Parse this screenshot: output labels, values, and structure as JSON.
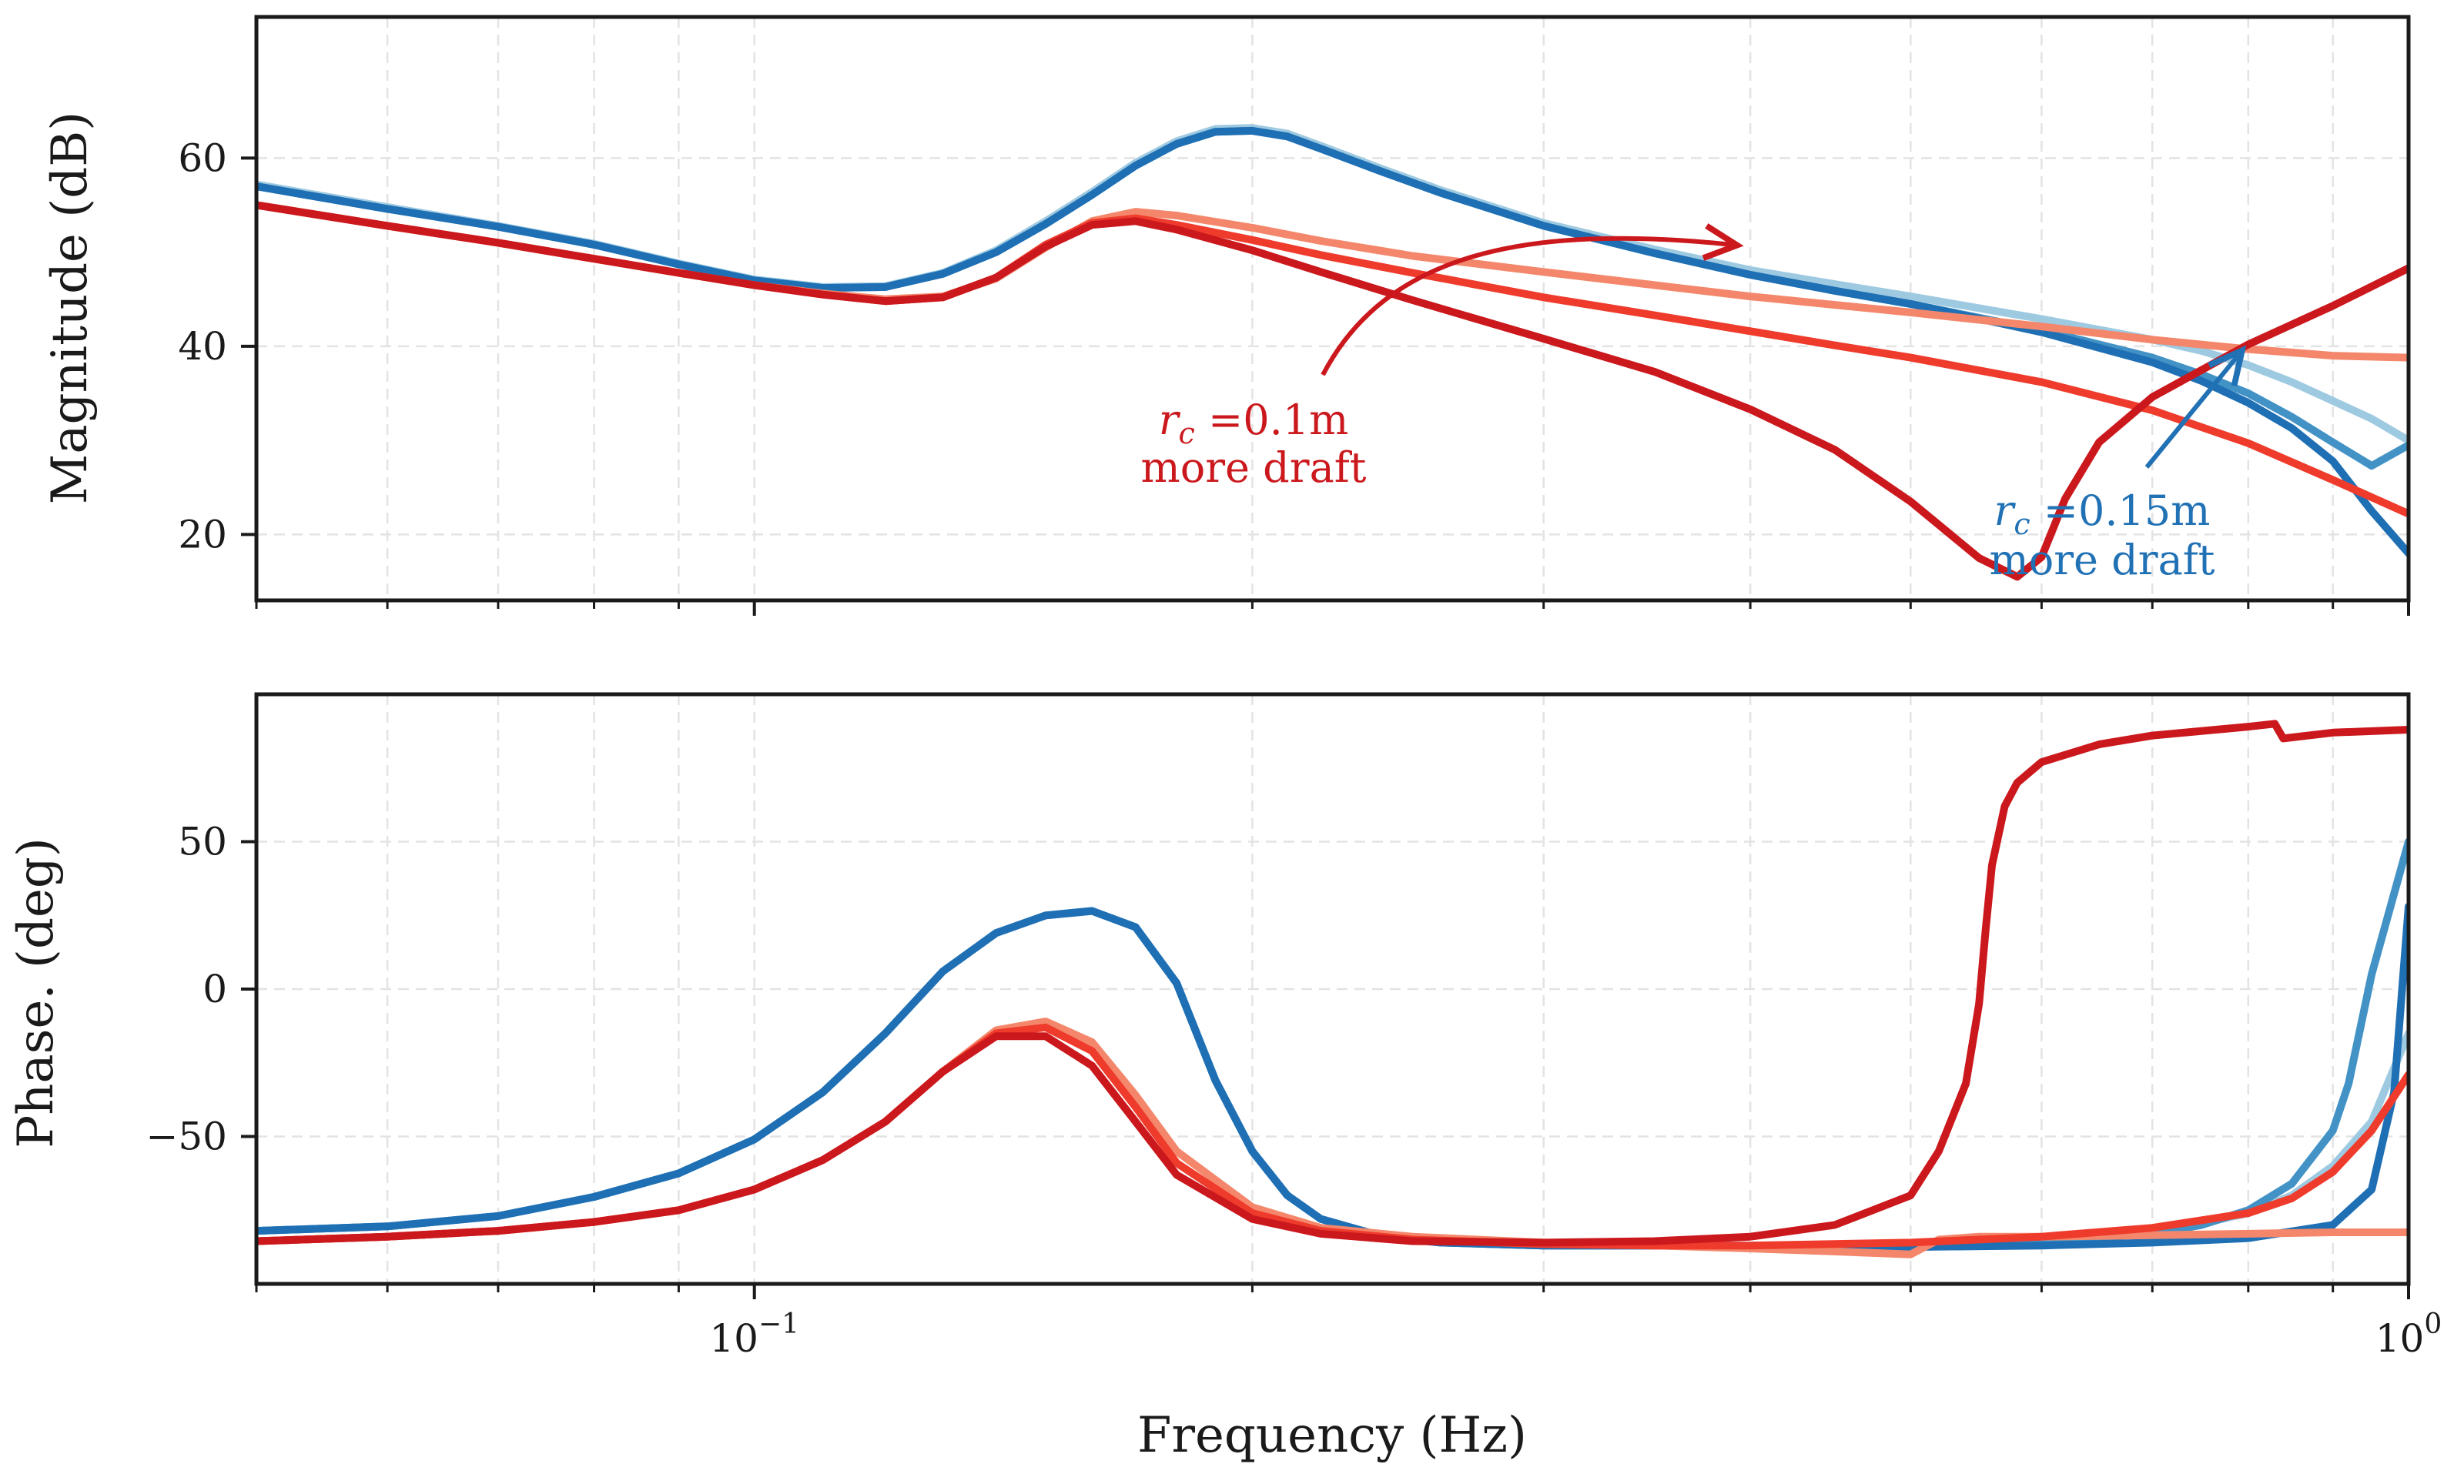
{
  "chart_data": [
    {
      "type": "line",
      "panel": "magnitude",
      "title": "",
      "xlabel": "",
      "ylabel": "Magnitude (dB)",
      "xscale": "log",
      "xlim": [
        0.05,
        1.0
      ],
      "ylim": [
        13,
        75
      ],
      "yticks": [
        20,
        40,
        60
      ],
      "ytick_labels": [
        "20",
        "40",
        "60"
      ],
      "grid": true,
      "series": [
        {
          "name": "blue-light",
          "color": "#9ecae1",
          "x": [
            0.05,
            0.06,
            0.07,
            0.08,
            0.09,
            0.1,
            0.11,
            0.12,
            0.13,
            0.14,
            0.15,
            0.16,
            0.17,
            0.18,
            0.19,
            0.2,
            0.21,
            0.22,
            0.24,
            0.26,
            0.3,
            0.35,
            0.4,
            0.45,
            0.5,
            0.6,
            0.7,
            0.75,
            0.8,
            0.85,
            0.9,
            0.95,
            1.0
          ],
          "y": [
            57.2,
            54.8,
            52.8,
            50.9,
            48.8,
            47.1,
            46.3,
            46.4,
            47.8,
            50.2,
            53.3,
            56.4,
            59.5,
            61.8,
            63.1,
            63.2,
            62.6,
            61.3,
            58.8,
            56.6,
            53.1,
            50.3,
            48.1,
            46.6,
            45.3,
            42.9,
            40.7,
            39.5,
            38.0,
            36.2,
            34.2,
            32.3,
            30.0
          ]
        },
        {
          "name": "blue-mid",
          "color": "#4292c6",
          "x": [
            0.05,
            0.06,
            0.07,
            0.08,
            0.09,
            0.1,
            0.11,
            0.12,
            0.13,
            0.14,
            0.15,
            0.16,
            0.17,
            0.18,
            0.19,
            0.2,
            0.21,
            0.22,
            0.24,
            0.26,
            0.3,
            0.35,
            0.4,
            0.45,
            0.5,
            0.6,
            0.7,
            0.75,
            0.8,
            0.85,
            0.9,
            0.95,
            1.0
          ],
          "y": [
            57.0,
            54.6,
            52.7,
            50.8,
            48.7,
            47.0,
            46.2,
            46.3,
            47.7,
            50.0,
            53.0,
            56.1,
            59.2,
            61.5,
            62.8,
            62.9,
            62.3,
            61.0,
            58.5,
            56.3,
            52.8,
            49.9,
            47.6,
            45.9,
            44.5,
            41.7,
            38.8,
            37.0,
            35.0,
            32.5,
            29.8,
            27.3,
            29.5
          ]
        },
        {
          "name": "blue-dark",
          "color": "#1f6fb4",
          "x": [
            0.05,
            0.06,
            0.07,
            0.08,
            0.09,
            0.1,
            0.11,
            0.12,
            0.13,
            0.14,
            0.15,
            0.16,
            0.17,
            0.18,
            0.19,
            0.2,
            0.21,
            0.22,
            0.24,
            0.26,
            0.3,
            0.35,
            0.4,
            0.45,
            0.5,
            0.6,
            0.7,
            0.75,
            0.8,
            0.85,
            0.9,
            0.95,
            1.0
          ],
          "y": [
            57.0,
            54.6,
            52.7,
            50.8,
            48.7,
            47.0,
            46.2,
            46.3,
            47.7,
            50.0,
            53.0,
            56.1,
            59.2,
            61.5,
            62.8,
            62.9,
            62.3,
            61.0,
            58.5,
            56.3,
            52.8,
            49.9,
            47.6,
            45.9,
            44.5,
            41.5,
            38.3,
            36.3,
            34.0,
            31.3,
            27.8,
            22.5,
            18.0
          ]
        },
        {
          "name": "red-light",
          "color": "#f4876b",
          "x": [
            0.05,
            0.06,
            0.07,
            0.08,
            0.09,
            0.1,
            0.11,
            0.12,
            0.13,
            0.14,
            0.15,
            0.16,
            0.17,
            0.18,
            0.2,
            0.22,
            0.25,
            0.3,
            0.35,
            0.4,
            0.45,
            0.5,
            0.6,
            0.7,
            0.8,
            0.9,
            1.0
          ],
          "y": [
            55.0,
            52.8,
            51.0,
            49.3,
            47.8,
            46.5,
            45.6,
            45.0,
            45.3,
            47.2,
            50.5,
            53.3,
            54.3,
            53.9,
            52.6,
            51.2,
            49.6,
            47.9,
            46.5,
            45.3,
            44.4,
            43.6,
            42.1,
            40.7,
            39.7,
            39.0,
            38.8
          ]
        },
        {
          "name": "red-mid",
          "color": "#ef3b2c",
          "x": [
            0.05,
            0.06,
            0.07,
            0.08,
            0.09,
            0.1,
            0.11,
            0.12,
            0.13,
            0.14,
            0.15,
            0.16,
            0.17,
            0.18,
            0.2,
            0.22,
            0.25,
            0.3,
            0.35,
            0.4,
            0.45,
            0.5,
            0.6,
            0.7,
            0.8,
            0.9,
            1.0
          ],
          "y": [
            55.0,
            52.8,
            51.0,
            49.3,
            47.8,
            46.5,
            45.5,
            44.8,
            45.2,
            47.3,
            50.8,
            53.1,
            53.6,
            52.9,
            51.3,
            49.7,
            47.8,
            45.2,
            43.3,
            41.6,
            40.1,
            38.8,
            36.2,
            33.2,
            29.7,
            25.8,
            22.2
          ]
        },
        {
          "name": "red-dark",
          "color": "#cb181d",
          "x": [
            0.05,
            0.06,
            0.07,
            0.08,
            0.09,
            0.1,
            0.11,
            0.12,
            0.13,
            0.14,
            0.15,
            0.16,
            0.17,
            0.18,
            0.2,
            0.22,
            0.25,
            0.3,
            0.35,
            0.4,
            0.45,
            0.5,
            0.55,
            0.58,
            0.6,
            0.62,
            0.65,
            0.7,
            0.8,
            0.9,
            1.0
          ],
          "y": [
            55.0,
            52.8,
            51.0,
            49.3,
            47.8,
            46.5,
            45.5,
            44.8,
            45.2,
            47.3,
            50.6,
            52.9,
            53.3,
            52.4,
            50.2,
            47.9,
            44.9,
            40.8,
            37.3,
            33.3,
            29.0,
            23.5,
            17.5,
            15.5,
            17.6,
            23.8,
            29.8,
            34.6,
            40.2,
            44.3,
            48.3
          ]
        }
      ]
    },
    {
      "type": "line",
      "panel": "phase",
      "title": "",
      "xlabel": "Frequency (Hz)",
      "ylabel": "Phase. (deg)",
      "xscale": "log",
      "xlim": [
        0.05,
        1.0
      ],
      "ylim": [
        -100,
        100
      ],
      "yticks": [
        -50,
        0,
        50
      ],
      "ytick_labels": [
        "−50",
        "0",
        "50"
      ],
      "grid": true,
      "series": [
        {
          "name": "blue-light",
          "color": "#9ecae1",
          "x": [
            0.05,
            0.06,
            0.07,
            0.08,
            0.09,
            0.1,
            0.11,
            0.12,
            0.13,
            0.14,
            0.15,
            0.16,
            0.17,
            0.18,
            0.19,
            0.2,
            0.21,
            0.22,
            0.24,
            0.26,
            0.3,
            0.35,
            0.4,
            0.5,
            0.6,
            0.7,
            0.75,
            0.8,
            0.85,
            0.9,
            0.95,
            1.0
          ],
          "y": [
            -82,
            -80.5,
            -77,
            -70.5,
            -62.5,
            -51,
            -35,
            -15,
            6,
            19,
            25,
            26.5,
            21,
            2,
            -31,
            -55,
            -70,
            -78,
            -84,
            -86,
            -87,
            -87,
            -87,
            -86.5,
            -85,
            -82,
            -79.5,
            -76,
            -70,
            -60,
            -45,
            -15
          ]
        },
        {
          "name": "blue-mid",
          "color": "#4292c6",
          "x": [
            0.05,
            0.06,
            0.07,
            0.08,
            0.09,
            0.1,
            0.11,
            0.12,
            0.13,
            0.14,
            0.15,
            0.16,
            0.17,
            0.18,
            0.19,
            0.2,
            0.21,
            0.22,
            0.24,
            0.26,
            0.3,
            0.35,
            0.4,
            0.5,
            0.6,
            0.7,
            0.75,
            0.8,
            0.85,
            0.9,
            0.92,
            0.95,
            1.0
          ],
          "y": [
            -82,
            -80.5,
            -77,
            -70.5,
            -62.5,
            -51,
            -35,
            -15,
            6,
            19,
            25,
            26.5,
            21,
            2,
            -31,
            -55,
            -70,
            -78,
            -84,
            -86,
            -87,
            -87,
            -87,
            -86.5,
            -85.5,
            -83,
            -80,
            -75,
            -66,
            -48,
            -32,
            5,
            50
          ]
        },
        {
          "name": "blue-dark",
          "color": "#1f6fb4",
          "x": [
            0.05,
            0.06,
            0.07,
            0.08,
            0.09,
            0.1,
            0.11,
            0.12,
            0.13,
            0.14,
            0.15,
            0.16,
            0.17,
            0.18,
            0.19,
            0.2,
            0.21,
            0.22,
            0.24,
            0.26,
            0.3,
            0.35,
            0.4,
            0.5,
            0.6,
            0.7,
            0.8,
            0.9,
            0.95,
            0.98,
            1.0
          ],
          "y": [
            -82,
            -80.5,
            -77,
            -70.5,
            -62.5,
            -51,
            -35,
            -15,
            6,
            19,
            25,
            26.5,
            21,
            2,
            -31,
            -55,
            -70,
            -78,
            -84,
            -86,
            -87,
            -87,
            -87.5,
            -87.5,
            -87,
            -86,
            -84.5,
            -80,
            -68,
            -35,
            28
          ]
        },
        {
          "name": "red-light",
          "color": "#f4876b",
          "x": [
            0.05,
            0.06,
            0.07,
            0.08,
            0.09,
            0.1,
            0.11,
            0.12,
            0.13,
            0.14,
            0.15,
            0.16,
            0.17,
            0.18,
            0.2,
            0.22,
            0.25,
            0.3,
            0.35,
            0.4,
            0.45,
            0.5,
            0.52,
            0.55,
            0.6,
            0.7,
            0.8,
            0.9,
            1.0
          ],
          "y": [
            -85.5,
            -84,
            -82,
            -79,
            -75,
            -68,
            -58,
            -45,
            -28,
            -14,
            -11,
            -18,
            -36,
            -55,
            -74,
            -81,
            -84,
            -86,
            -87,
            -88,
            -89,
            -90,
            -85,
            -84,
            -84,
            -83.5,
            -83,
            -82.5,
            -82.5
          ]
        },
        {
          "name": "red-mid",
          "color": "#ef3b2c",
          "x": [
            0.05,
            0.06,
            0.07,
            0.08,
            0.09,
            0.1,
            0.11,
            0.12,
            0.13,
            0.14,
            0.15,
            0.16,
            0.17,
            0.18,
            0.2,
            0.22,
            0.25,
            0.3,
            0.35,
            0.4,
            0.5,
            0.6,
            0.7,
            0.8,
            0.85,
            0.9,
            0.95,
            1.0
          ],
          "y": [
            -85.5,
            -84,
            -82,
            -79,
            -75,
            -68,
            -58,
            -45,
            -28,
            -15,
            -13,
            -21,
            -40,
            -59,
            -76,
            -82,
            -85,
            -86.5,
            -87,
            -87,
            -86,
            -84,
            -81,
            -76,
            -71,
            -62,
            -48,
            -29
          ]
        },
        {
          "name": "red-dark",
          "color": "#cb181d",
          "x": [
            0.05,
            0.06,
            0.07,
            0.08,
            0.09,
            0.1,
            0.11,
            0.12,
            0.13,
            0.14,
            0.15,
            0.16,
            0.17,
            0.18,
            0.2,
            0.22,
            0.25,
            0.3,
            0.35,
            0.4,
            0.45,
            0.5,
            0.52,
            0.54,
            0.55,
            0.555,
            0.56,
            0.57,
            0.58,
            0.6,
            0.65,
            0.7,
            0.8,
            0.83,
            0.84,
            0.9,
            1.0
          ],
          "y": [
            -85.5,
            -84,
            -82,
            -79,
            -75,
            -68,
            -58,
            -45,
            -28,
            -16,
            -16,
            -26,
            -45,
            -63,
            -78,
            -83,
            -85.5,
            -86,
            -85.5,
            -84,
            -80,
            -70,
            -55,
            -32,
            -5,
            20,
            42,
            62,
            70,
            77,
            83,
            86,
            89,
            90,
            85,
            87,
            88
          ]
        }
      ],
      "xticks": [
        0.1,
        1.0
      ],
      "xtick_labels": [
        "10",
        "10"
      ],
      "xtick_exponents": [
        "−1",
        "0"
      ]
    }
  ],
  "annotations": [
    {
      "line1_var": "r",
      "line1_sub": "c",
      "line1_rest": " =0.1m",
      "line2": "more draft",
      "color": "#cb181d"
    },
    {
      "line1_var": "r",
      "line1_sub": "c",
      "line1_rest": " =0.15m",
      "line2": "more draft",
      "color": "#2171b5"
    }
  ]
}
